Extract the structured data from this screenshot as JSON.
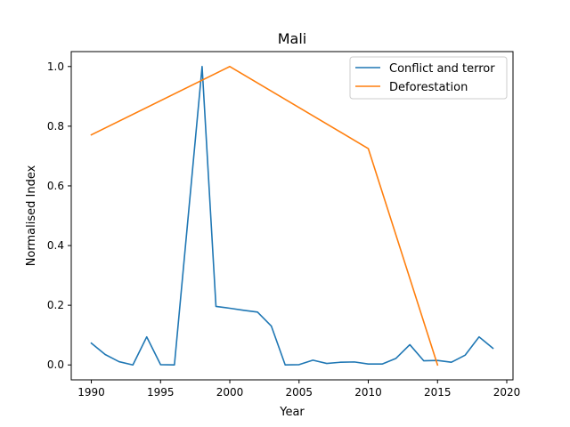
{
  "chart_data": {
    "type": "line",
    "title": "Mali",
    "xlabel": "Year",
    "ylabel": "Normalised Index",
    "xlim": [
      1988.55,
      2020.45
    ],
    "ylim": [
      -0.05,
      1.05
    ],
    "xticks": [
      1990,
      1995,
      2000,
      2005,
      2010,
      2015,
      2020
    ],
    "yticks": [
      0.0,
      0.2,
      0.4,
      0.6,
      0.8,
      1.0
    ],
    "ytick_labels": [
      "0.0",
      "0.2",
      "0.4",
      "0.6",
      "0.8",
      "1.0"
    ],
    "grid": false,
    "legend_position": "top-right",
    "series": [
      {
        "name": "Conflict and terror",
        "color": "#1f77b4",
        "x": [
          1990,
          1991,
          1992,
          1993,
          1994,
          1995,
          1996,
          1997,
          1998,
          1999,
          2000,
          2001,
          2002,
          2003,
          2004,
          2005,
          2006,
          2007,
          2008,
          2009,
          2010,
          2011,
          2012,
          2013,
          2014,
          2015,
          2016,
          2017,
          2018,
          2019
        ],
        "y": [
          0.073,
          0.035,
          0.011,
          0.0,
          0.094,
          0.001,
          0.0,
          0.5,
          1.0,
          0.196,
          0.19,
          0.183,
          0.177,
          0.13,
          0.0,
          0.001,
          0.016,
          0.005,
          0.009,
          0.01,
          0.003,
          0.003,
          0.022,
          0.068,
          0.014,
          0.015,
          0.009,
          0.033,
          0.094,
          0.056
        ]
      },
      {
        "name": "Deforestation",
        "color": "#ff7f0e",
        "x": [
          1990,
          2000,
          2010,
          2015
        ],
        "y": [
          0.771,
          1.0,
          0.725,
          0.0
        ]
      }
    ]
  }
}
